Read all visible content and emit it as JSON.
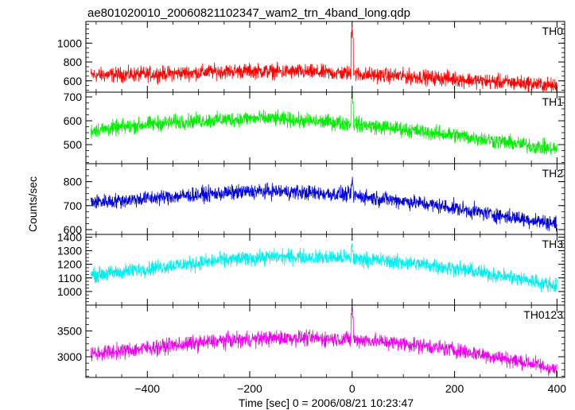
{
  "chart_data": {
    "type": "line",
    "title": "ae801020010_20060821102347_wam2_trn_4band_long.qdp",
    "xlabel": "Time [sec] 0 = 2006/08/21 10:23:47",
    "ylabel": "Counts/sec",
    "xlim": [
      -520,
      415
    ],
    "x_ticks": [
      -400,
      -200,
      0,
      200,
      400
    ],
    "x_tick_labels": [
      "−400",
      "−200",
      "0",
      "200",
      "400"
    ],
    "grid": false,
    "panels": [
      {
        "name": "TH0",
        "color": "#ff0000",
        "ylim": [
          480,
          1230
        ],
        "y_ticks": [
          600,
          800,
          1000
        ],
        "y_tick_labels": [
          "600",
          "800",
          "1000"
        ],
        "x": [
          -510,
          -460,
          -400,
          -340,
          -300,
          -250,
          -200,
          -150,
          -100,
          -50,
          -10,
          0,
          10,
          50,
          100,
          150,
          200,
          250,
          300,
          350,
          400
        ],
        "y": [
          660,
          665,
          670,
          680,
          690,
          700,
          705,
          700,
          695,
          685,
          680,
          1180,
          670,
          660,
          650,
          635,
          620,
          600,
          585,
          570,
          545
        ]
      },
      {
        "name": "TH1",
        "color": "#00ee00",
        "ylim": [
          420,
          720
        ],
        "y_ticks": [
          500,
          600,
          700
        ],
        "y_tick_labels": [
          "500",
          "600",
          "700"
        ],
        "x": [
          -510,
          -460,
          -400,
          -340,
          -300,
          -250,
          -200,
          -150,
          -100,
          -50,
          -10,
          0,
          10,
          50,
          100,
          150,
          200,
          250,
          300,
          350,
          400
        ],
        "y": [
          560,
          570,
          585,
          595,
          600,
          605,
          610,
          608,
          600,
          595,
          590,
          710,
          585,
          575,
          565,
          550,
          540,
          525,
          510,
          495,
          480
        ]
      },
      {
        "name": "TH2",
        "color": "#0000dd",
        "ylim": [
          580,
          875
        ],
        "y_ticks": [
          600,
          700,
          800
        ],
        "y_tick_labels": [
          "600",
          "700",
          "800"
        ],
        "x": [
          -510,
          -460,
          -400,
          -340,
          -300,
          -250,
          -200,
          -150,
          -100,
          -50,
          -10,
          0,
          10,
          50,
          100,
          150,
          200,
          250,
          300,
          350,
          400
        ],
        "y": [
          715,
          720,
          730,
          740,
          745,
          752,
          758,
          760,
          755,
          750,
          745,
          790,
          740,
          730,
          720,
          705,
          690,
          672,
          655,
          640,
          625
        ]
      },
      {
        "name": "TH3",
        "color": "#00eeee",
        "ylim": [
          900,
          1420
        ],
        "y_ticks": [
          1000,
          1100,
          1200,
          1300,
          1400
        ],
        "y_tick_labels": [
          "1000",
          "1100",
          "1200",
          "1300",
          "1400"
        ],
        "x": [
          -510,
          -460,
          -400,
          -340,
          -300,
          -250,
          -200,
          -150,
          -100,
          -50,
          -10,
          0,
          10,
          50,
          100,
          150,
          200,
          250,
          300,
          350,
          400
        ],
        "y": [
          1120,
          1140,
          1170,
          1195,
          1210,
          1230,
          1245,
          1255,
          1255,
          1250,
          1245,
          1320,
          1240,
          1230,
          1215,
          1195,
          1170,
          1140,
          1110,
          1080,
          1040
        ]
      },
      {
        "name": "TH0123",
        "color": "#ee00ee",
        "ylim": [
          2600,
          4000
        ],
        "y_ticks": [
          3000,
          3500
        ],
        "y_tick_labels": [
          "3000",
          "3500"
        ],
        "x": [
          -510,
          -460,
          -400,
          -340,
          -300,
          -250,
          -200,
          -150,
          -100,
          -50,
          -10,
          0,
          10,
          50,
          100,
          150,
          200,
          250,
          300,
          350,
          400
        ],
        "y": [
          3060,
          3100,
          3170,
          3230,
          3270,
          3310,
          3340,
          3360,
          3360,
          3350,
          3340,
          3900,
          3330,
          3300,
          3260,
          3200,
          3130,
          3050,
          2960,
          2870,
          2740
        ]
      }
    ]
  }
}
